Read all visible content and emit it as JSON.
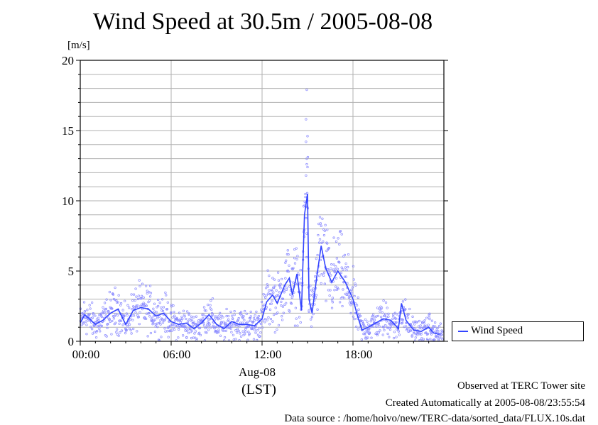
{
  "chart_data": {
    "type": "scatter",
    "title": "Wind Speed at 30.5m / 2005-08-08",
    "ylabel": "[m/s]",
    "ylim": [
      0,
      20
    ],
    "yticks": [
      "0",
      "5",
      "10",
      "15",
      "20"
    ],
    "xlim_hours": [
      0,
      24
    ],
    "xticks": [
      "00:00",
      "06:00",
      "12:00",
      "18:00"
    ],
    "date_label": "Aug-08",
    "xunit_label": "(LST)",
    "grid": true,
    "legend_placement": "right",
    "series": [
      {
        "name": "Wind Speed",
        "color": "#3344ff",
        "point_color": "#8a8aff",
        "mean_line": [
          [
            0.0,
            1.3
          ],
          [
            0.3,
            1.9
          ],
          [
            0.6,
            1.6
          ],
          [
            1.0,
            1.2
          ],
          [
            1.5,
            1.5
          ],
          [
            2.0,
            2.0
          ],
          [
            2.5,
            2.3
          ],
          [
            3.0,
            1.2
          ],
          [
            3.5,
            2.2
          ],
          [
            4.0,
            2.4
          ],
          [
            4.5,
            2.3
          ],
          [
            5.0,
            1.8
          ],
          [
            5.5,
            2.0
          ],
          [
            6.0,
            1.4
          ],
          [
            6.5,
            1.2
          ],
          [
            7.0,
            1.3
          ],
          [
            7.5,
            0.9
          ],
          [
            8.0,
            1.3
          ],
          [
            8.5,
            1.9
          ],
          [
            9.0,
            1.2
          ],
          [
            9.5,
            0.9
          ],
          [
            10.0,
            1.4
          ],
          [
            10.5,
            1.2
          ],
          [
            11.0,
            1.2
          ],
          [
            11.5,
            1.1
          ],
          [
            12.0,
            1.6
          ],
          [
            12.3,
            2.8
          ],
          [
            12.7,
            3.3
          ],
          [
            13.0,
            2.7
          ],
          [
            13.5,
            4.0
          ],
          [
            13.8,
            4.5
          ],
          [
            14.0,
            3.3
          ],
          [
            14.3,
            4.8
          ],
          [
            14.6,
            2.2
          ],
          [
            14.8,
            9.0
          ],
          [
            15.0,
            10.5
          ],
          [
            15.1,
            3.0
          ],
          [
            15.3,
            2.0
          ],
          [
            15.6,
            4.5
          ],
          [
            15.9,
            6.8
          ],
          [
            16.2,
            5.2
          ],
          [
            16.6,
            4.2
          ],
          [
            17.0,
            5.0
          ],
          [
            17.5,
            4.2
          ],
          [
            18.0,
            3.0
          ],
          [
            18.3,
            1.8
          ],
          [
            18.6,
            0.8
          ],
          [
            19.0,
            1.0
          ],
          [
            19.5,
            1.3
          ],
          [
            20.0,
            1.6
          ],
          [
            20.5,
            1.5
          ],
          [
            21.0,
            0.9
          ],
          [
            21.2,
            2.7
          ],
          [
            21.5,
            1.5
          ],
          [
            22.0,
            0.8
          ],
          [
            22.5,
            0.7
          ],
          [
            23.0,
            1.0
          ],
          [
            23.3,
            0.6
          ],
          [
            23.7,
            0.5
          ]
        ]
      }
    ]
  },
  "footer": {
    "observed": "Observed at TERC Tower site",
    "created": "Created Automatically at 2005-08-08/23:55:54",
    "source": "Data source : /home/hoivo/new/TERC-data/sorted_data/FLUX.10s.dat"
  }
}
